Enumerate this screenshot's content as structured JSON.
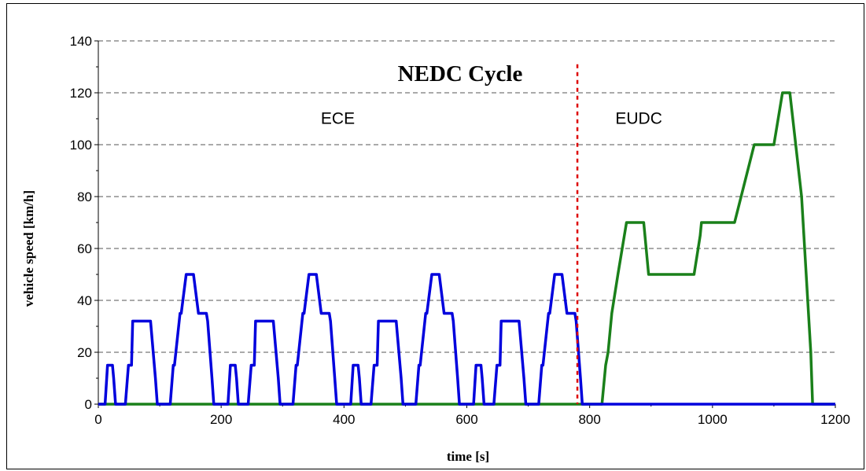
{
  "chart_data": {
    "type": "line",
    "title": "NEDC Cycle",
    "xlabel": "time  [s]",
    "ylabel": "vehicle speed  [km/h]",
    "xlim": [
      0,
      1200
    ],
    "ylim": [
      0,
      140
    ],
    "xticks": [
      0,
      200,
      400,
      600,
      800,
      1000,
      1200
    ],
    "yticks": [
      0,
      20,
      40,
      60,
      80,
      100,
      120,
      140
    ],
    "grid": "horizontal dashed",
    "colors": {
      "ece": "#0000dd",
      "eudc": "#1a801a",
      "divider": "#dd0000"
    },
    "annotations": [
      {
        "text": "ECE",
        "x": 390,
        "y": 108
      },
      {
        "text": "EUDC",
        "x": 880,
        "y": 108
      }
    ],
    "divider_x": 780,
    "series": [
      {
        "key": "ece",
        "x": [
          0,
          11,
          15,
          23,
          25,
          28,
          44,
          49,
          54,
          56,
          61,
          85,
          93,
          96,
          117,
          122,
          124,
          133,
          135,
          143,
          155,
          163,
          176,
          178,
          185,
          188,
          195,
          200,
          206,
          211,
          215,
          223,
          225,
          228,
          244,
          249,
          254,
          256,
          261,
          285,
          293,
          296,
          317,
          322,
          324,
          333,
          335,
          343,
          355,
          363,
          376,
          378,
          385,
          388,
          395,
          400,
          406,
          411,
          415,
          423,
          425,
          428,
          444,
          449,
          454,
          456,
          461,
          485,
          493,
          496,
          517,
          522,
          524,
          533,
          535,
          543,
          555,
          563,
          576,
          578,
          585,
          588,
          595,
          600,
          606,
          611,
          615,
          623,
          625,
          628,
          644,
          649,
          654,
          656,
          661,
          685,
          693,
          696,
          717,
          722,
          724,
          733,
          735,
          743,
          755,
          763,
          776,
          778,
          785,
          788,
          795,
          800
        ],
        "y": [
          0,
          0,
          15,
          15,
          10,
          0,
          0,
          15,
          15,
          32,
          32,
          32,
          10,
          0,
          0,
          15,
          15,
          35,
          35,
          50,
          50,
          35,
          35,
          32,
          10,
          0,
          0,
          0,
          0,
          0,
          15,
          15,
          10,
          0,
          0,
          15,
          15,
          32,
          32,
          32,
          10,
          0,
          0,
          15,
          15,
          35,
          35,
          50,
          50,
          35,
          35,
          32,
          10,
          0,
          0,
          0,
          0,
          0,
          15,
          15,
          10,
          0,
          0,
          15,
          15,
          32,
          32,
          32,
          10,
          0,
          0,
          15,
          15,
          35,
          35,
          50,
          50,
          35,
          35,
          32,
          10,
          0,
          0,
          0,
          0,
          0,
          15,
          15,
          10,
          0,
          0,
          15,
          15,
          32,
          32,
          32,
          10,
          0,
          0,
          15,
          15,
          35,
          35,
          50,
          50,
          35,
          35,
          32,
          10,
          0,
          0,
          0
        ]
      },
      {
        "key": "ece_baseline",
        "x": [
          800,
          1200
        ],
        "y": [
          0,
          0
        ]
      },
      {
        "key": "eudc",
        "x": [
          0,
          800,
          820,
          826,
          830,
          836,
          846,
          860,
          888,
          896,
          904,
          930,
          970,
          980,
          982,
          1000,
          1030,
          1036,
          1068,
          1100,
          1114,
          1116,
          1124,
          1126,
          1145,
          1160,
          1163,
          1180,
          1200
        ],
        "y": [
          0,
          0,
          0,
          15,
          20,
          35,
          50,
          70,
          70,
          50,
          50,
          50,
          50,
          65,
          70,
          70,
          70,
          70,
          100,
          100,
          120,
          120,
          120,
          120,
          80,
          20,
          0,
          0,
          0
        ]
      }
    ]
  }
}
